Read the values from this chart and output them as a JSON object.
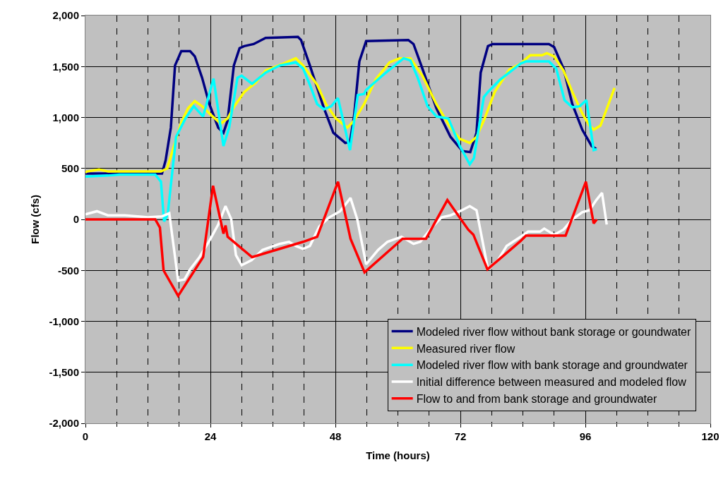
{
  "chart_data": {
    "type": "line",
    "xlabel": "Time (hours)",
    "ylabel": "Flow (cfs)",
    "xlim": [
      0,
      120
    ],
    "ylim": [
      -2000,
      2000
    ],
    "xticks": [
      0,
      {
        "value": 6,
        "label": null
      },
      {
        "value": 12,
        "label": null
      },
      {
        "value": 18,
        "label": null
      },
      24,
      {
        "value": 30,
        "label": null
      },
      {
        "value": 36,
        "label": null
      },
      {
        "value": 42,
        "label": null
      },
      48,
      {
        "value": 54,
        "label": null
      },
      {
        "value": 60,
        "label": null
      },
      {
        "value": 66,
        "label": null
      },
      72,
      {
        "value": 78,
        "label": null
      },
      {
        "value": 84,
        "label": null
      },
      {
        "value": 90,
        "label": null
      },
      96,
      {
        "value": 102,
        "label": null
      },
      {
        "value": 108,
        "label": null
      },
      {
        "value": 114,
        "label": null
      },
      120
    ],
    "yticks": [
      {
        "value": -2000,
        "label": "-2,000"
      },
      {
        "value": -1500,
        "label": "-1,500"
      },
      {
        "value": -1000,
        "label": "-1,000"
      },
      {
        "value": -500,
        "label": "-500"
      },
      0,
      500,
      {
        "value": 1000,
        "label": "1,000"
      },
      {
        "value": 1500,
        "label": "1,500"
      },
      {
        "value": 2000,
        "label": "2,000"
      }
    ],
    "grid": true,
    "legend": "bottom right",
    "marker": "none",
    "line_style": "solid",
    "series": [
      {
        "name": "Modeled river flow without bank storage or goundwater",
        "color": "#000080",
        "x": [
          0,
          14.7,
          15.4,
          16.4,
          17.2,
          18.4,
          20.1,
          21,
          22.4,
          23.8,
          25.5,
          26.5,
          27.3,
          28.5,
          29.6,
          30.5,
          32.3,
          34.6,
          40.8,
          41.4,
          43.1,
          45.8,
          47.6,
          49.9,
          50.8,
          51.6,
          52.6,
          53.9,
          62,
          63,
          64.7,
          67.4,
          70.1,
          72.4,
          73.9,
          75.1,
          75.9,
          77.3,
          78.2,
          89,
          90,
          91.8,
          93.5,
          95.4,
          97.2,
          98.1
        ],
        "values": [
          450,
          450,
          580,
          900,
          1510,
          1650,
          1650,
          1600,
          1390,
          1130,
          900,
          850,
          970,
          1510,
          1680,
          1700,
          1720,
          1780,
          1790,
          1760,
          1510,
          1090,
          850,
          750,
          760,
          1020,
          1550,
          1750,
          1760,
          1720,
          1480,
          1090,
          810,
          670,
          660,
          850,
          1440,
          1700,
          1720,
          1720,
          1690,
          1480,
          1130,
          880,
          720,
          690
        ]
      },
      {
        "name": "Measured river flow",
        "color": "#ffff00",
        "x": [
          0,
          0.3,
          2.6,
          4.4,
          7.6,
          12,
          14.5,
          15.7,
          17,
          18.4,
          19.7,
          21,
          22.4,
          24.2,
          26,
          27.3,
          28.6,
          30.5,
          32.7,
          34.6,
          38.1,
          40.4,
          41.8,
          44.5,
          46.2,
          48.1,
          50.3,
          51.6,
          53.5,
          55.7,
          58.4,
          60.3,
          62.4,
          64.7,
          67.4,
          70.1,
          71.9,
          73.8,
          75.1,
          76.5,
          78.6,
          81.4,
          83.6,
          85.4,
          87.7,
          88.6,
          90,
          91.8,
          93.5,
          95.4,
          96.8,
          97.6,
          98.9,
          101.6
        ],
        "values": [
          460,
          470,
          490,
          470,
          470,
          470,
          470,
          500,
          720,
          950,
          1090,
          1160,
          1110,
          1020,
          940,
          990,
          1110,
          1250,
          1340,
          1460,
          1530,
          1580,
          1510,
          1320,
          1130,
          990,
          900,
          970,
          1130,
          1370,
          1540,
          1580,
          1580,
          1410,
          1130,
          900,
          790,
          750,
          810,
          970,
          1250,
          1470,
          1530,
          1610,
          1610,
          1630,
          1600,
          1460,
          1250,
          1040,
          920,
          880,
          920,
          1290
        ]
      },
      {
        "name": "Modeled river flow with bank storage and groundwater",
        "color": "#00ffff",
        "x": [
          0,
          4.3,
          6.6,
          13.4,
          14.5,
          15.1,
          15.8,
          17.4,
          19.2,
          20.8,
          22.6,
          24.6,
          26.5,
          27.6,
          29.2,
          30,
          32,
          34.6,
          37.3,
          40.4,
          41.8,
          43.1,
          44.5,
          45.8,
          47.2,
          48.5,
          50.8,
          52.3,
          53.5,
          53.9,
          57,
          61.1,
          62.4,
          63.8,
          65.7,
          67.4,
          69.7,
          71.9,
          73.8,
          74.6,
          76.5,
          77.3,
          79.6,
          83.6,
          84.6,
          89,
          90.4,
          92,
          93.5,
          94.9,
          96.2,
          97.6,
          98.2
        ],
        "values": [
          420,
          430,
          440,
          440,
          370,
          -20,
          50,
          810,
          990,
          1110,
          1010,
          1380,
          720,
          900,
          1390,
          1410,
          1330,
          1440,
          1510,
          1540,
          1480,
          1320,
          1130,
          1080,
          1110,
          1190,
          680,
          1220,
          1230,
          1270,
          1410,
          1580,
          1560,
          1390,
          1110,
          1010,
          990,
          720,
          540,
          600,
          1200,
          1250,
          1370,
          1530,
          1550,
          1550,
          1480,
          1170,
          1100,
          1110,
          1170,
          680,
          690
        ]
      },
      {
        "name": "Initial difference between measured and modeled flow",
        "color": "#ffffff",
        "x": [
          0,
          2.2,
          4.3,
          7.6,
          12,
          14.7,
          16.1,
          17.8,
          19,
          20.1,
          21.9,
          23.8,
          25.5,
          26.9,
          28,
          28.9,
          30,
          31.9,
          34,
          37.3,
          39.1,
          40.4,
          41.8,
          43.1,
          44.9,
          46.8,
          48.9,
          50.9,
          52.2,
          53.9,
          56.2,
          58,
          60.7,
          63,
          64.3,
          66.5,
          68.4,
          70.1,
          71.9,
          73.8,
          75.1,
          75.9,
          77.3,
          79.2,
          80.9,
          83.6,
          85,
          87.3,
          88.1,
          90,
          91.8,
          93.5,
          95.4,
          96.8,
          98.1,
          99.2,
          100.1
        ],
        "values": [
          50,
          80,
          40,
          40,
          20,
          30,
          60,
          -600,
          -590,
          -490,
          -370,
          -210,
          -50,
          130,
          0,
          -350,
          -450,
          -400,
          -300,
          -240,
          -220,
          -260,
          -290,
          -260,
          -70,
          20,
          80,
          210,
          0,
          -440,
          -300,
          -220,
          -170,
          -240,
          -220,
          -80,
          20,
          40,
          80,
          130,
          90,
          -120,
          -490,
          -400,
          -260,
          -170,
          -120,
          -120,
          -90,
          -150,
          -100,
          0,
          70,
          90,
          190,
          260,
          -50
        ]
      },
      {
        "name": "Flow to and from bank storage and groundwater",
        "color": "#ff0000",
        "x": [
          0,
          13.4,
          14.3,
          15,
          17.8,
          22.6,
          24.5,
          26.5,
          26.9,
          27.3,
          32,
          41.8,
          44.5,
          48.5,
          50.9,
          53.6,
          60.9,
          65.4,
          69.5,
          73.5,
          74.5,
          77.2,
          83.6,
          84.6,
          92.2,
          96.1,
          97.6,
          98.2
        ],
        "values": [
          0,
          0,
          -80,
          -500,
          -750,
          -370,
          330,
          -140,
          -60,
          -170,
          -370,
          -220,
          -170,
          370,
          -190,
          -520,
          -190,
          -190,
          190,
          -100,
          -150,
          -490,
          -210,
          -160,
          -160,
          370,
          -40,
          0
        ]
      }
    ]
  }
}
